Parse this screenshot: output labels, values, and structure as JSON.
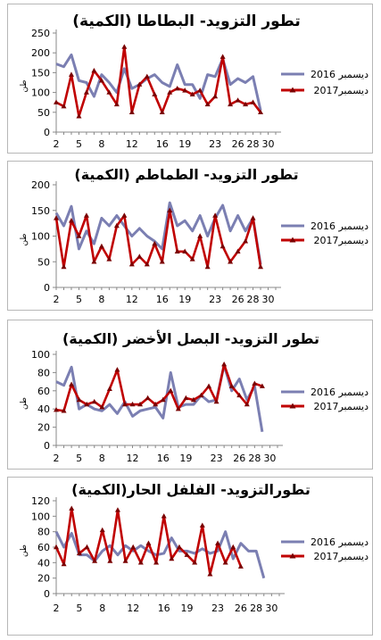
{
  "chart_data": [
    {
      "type": "line",
      "title": "تطور التزويد- البطاطا (الكمية)",
      "ylabel": "طن",
      "ylim": [
        0,
        250
      ],
      "yticks": [
        0,
        50,
        100,
        150,
        200,
        250
      ],
      "x": [
        2,
        3,
        4,
        5,
        6,
        7,
        8,
        9,
        10,
        11,
        12,
        13,
        14,
        15,
        16,
        17,
        18,
        19,
        20,
        21,
        22,
        23,
        24,
        25,
        26,
        27,
        28,
        29,
        30,
        31
      ],
      "xticks": [
        2,
        5,
        8,
        12,
        16,
        19,
        23,
        26,
        28,
        30
      ],
      "legend_position": "right",
      "series": [
        {
          "name": "ديسمبر 2016",
          "color": "#7b7fb2",
          "values": [
            172,
            165,
            195,
            130,
            125,
            90,
            145,
            125,
            100,
            160,
            110,
            120,
            135,
            145,
            125,
            115,
            170,
            120,
            120,
            85,
            145,
            140,
            185,
            120,
            135,
            125,
            140,
            55,
            null,
            null
          ]
        },
        {
          "name": "ديسمبر2017",
          "color": "#c00000",
          "values": [
            75,
            65,
            145,
            40,
            100,
            155,
            130,
            100,
            70,
            215,
            50,
            120,
            140,
            95,
            50,
            100,
            110,
            105,
            95,
            105,
            70,
            90,
            190,
            70,
            80,
            70,
            75,
            50,
            null,
            null
          ]
        }
      ]
    },
    {
      "type": "line",
      "title": "تطور التزويد- الطماطم (الكمية)",
      "ylabel": "طن",
      "ylim": [
        0,
        200
      ],
      "yticks": [
        0,
        50,
        100,
        150,
        200
      ],
      "x": [
        2,
        3,
        4,
        5,
        6,
        7,
        8,
        9,
        10,
        11,
        12,
        13,
        14,
        15,
        16,
        17,
        18,
        19,
        20,
        21,
        22,
        23,
        24,
        25,
        26,
        27,
        28,
        29,
        30,
        31
      ],
      "xticks": [
        2,
        5,
        8,
        12,
        16,
        19,
        23,
        26,
        28,
        30
      ],
      "legend_position": "right",
      "series": [
        {
          "name": "ديسمبر 2016",
          "color": "#7b7fb2",
          "values": [
            145,
            120,
            158,
            75,
            110,
            85,
            135,
            120,
            140,
            120,
            100,
            115,
            100,
            90,
            75,
            165,
            120,
            130,
            110,
            140,
            100,
            135,
            160,
            110,
            140,
            110,
            135,
            45,
            null,
            null
          ]
        },
        {
          "name": "ديسمبر2017",
          "color": "#c00000",
          "values": [
            135,
            40,
            130,
            100,
            140,
            50,
            80,
            55,
            120,
            140,
            45,
            60,
            45,
            85,
            50,
            150,
            70,
            70,
            55,
            100,
            40,
            140,
            80,
            50,
            70,
            90,
            135,
            40,
            null,
            null
          ]
        }
      ]
    },
    {
      "type": "line",
      "title": "تطور التزويد- البصل الأخضر (الكمية)",
      "ylabel": "طن",
      "ylim": [
        0,
        100
      ],
      "yticks": [
        0,
        20,
        40,
        60,
        80,
        100
      ],
      "x": [
        2,
        3,
        4,
        5,
        6,
        7,
        8,
        9,
        10,
        11,
        12,
        13,
        14,
        15,
        16,
        17,
        18,
        19,
        20,
        21,
        22,
        23,
        24,
        25,
        26,
        27,
        28,
        29,
        30,
        31
      ],
      "xticks": [
        2,
        5,
        8,
        12,
        16,
        19,
        23,
        26,
        28,
        30
      ],
      "legend_position": "right",
      "series": [
        {
          "name": "ديسمبر 2016",
          "color": "#7b7fb2",
          "values": [
            70,
            66,
            86,
            40,
            45,
            40,
            38,
            45,
            35,
            48,
            32,
            38,
            40,
            42,
            30,
            80,
            42,
            45,
            45,
            55,
            48,
            50,
            88,
            60,
            73,
            50,
            65,
            15,
            null,
            null
          ]
        },
        {
          "name": "ديسمبر2017",
          "color": "#c00000",
          "values": [
            39,
            38,
            67,
            50,
            45,
            48,
            42,
            62,
            83,
            45,
            45,
            45,
            52,
            45,
            50,
            60,
            40,
            52,
            50,
            55,
            65,
            48,
            89,
            65,
            55,
            45,
            68,
            65,
            null,
            null
          ]
        }
      ]
    },
    {
      "type": "line",
      "title": "تطورالتزويد- الفلفل الحار(الكمية)",
      "ylabel": "طن",
      "ylim": [
        0,
        120
      ],
      "yticks": [
        0,
        20,
        40,
        60,
        80,
        100,
        120
      ],
      "x": [
        2,
        3,
        4,
        5,
        6,
        7,
        8,
        9,
        10,
        11,
        12,
        13,
        14,
        15,
        16,
        17,
        18,
        19,
        20,
        21,
        22,
        23,
        24,
        25,
        26,
        27,
        28,
        29,
        30,
        31
      ],
      "xticks": [
        2,
        5,
        8,
        12,
        16,
        19,
        23,
        26,
        28,
        30
      ],
      "legend_position": "right",
      "series": [
        {
          "name": "ديسمبر 2016",
          "color": "#7b7fb2",
          "values": [
            80,
            60,
            78,
            50,
            50,
            42,
            55,
            62,
            50,
            62,
            55,
            62,
            55,
            50,
            52,
            72,
            55,
            55,
            52,
            58,
            52,
            55,
            80,
            45,
            65,
            55,
            55,
            20,
            null,
            null
          ]
        },
        {
          "name": "ديسمبر2017",
          "color": "#c00000",
          "values": [
            60,
            38,
            110,
            52,
            60,
            42,
            82,
            42,
            108,
            42,
            60,
            40,
            65,
            40,
            100,
            45,
            60,
            50,
            40,
            88,
            25,
            65,
            40,
            60,
            35,
            null,
            null,
            null,
            null,
            null
          ]
        }
      ]
    }
  ]
}
